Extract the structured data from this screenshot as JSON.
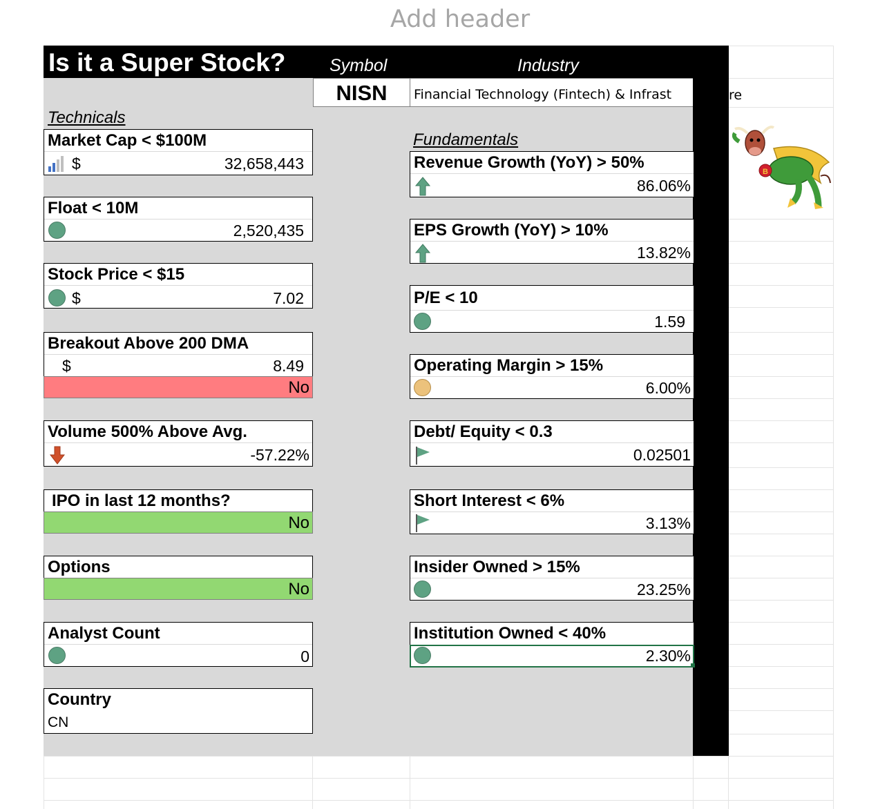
{
  "header": {
    "placeholder": "Add header"
  },
  "title": "Is it a Super Stock?",
  "columns": {
    "symbol": "Symbol",
    "industry": "Industry"
  },
  "symbol": "NISN",
  "industry": "Financial Technology (Fintech) & Infrastructure",
  "industry_visible": "Financial Technology (Fintech) & Infrast",
  "industry_overflow": "re",
  "sections": {
    "technicals": "Technicals",
    "fundamentals": "Fundamentals"
  },
  "technicals": {
    "market_cap": {
      "label": "Market Cap < $100M",
      "currency": "$",
      "value": "32,658,443",
      "icon": "signal-bars-icon"
    },
    "float": {
      "label": "Float < 10M",
      "value": "2,520,435",
      "icon": "green-circle-icon"
    },
    "stock_price": {
      "label": "Stock Price < $15",
      "currency": "$",
      "value": "7.02",
      "icon": "green-circle-icon"
    },
    "breakout": {
      "label": "Breakout Above 200 DMA",
      "currency": "$",
      "value": "8.49",
      "result": "No",
      "result_color": "#ff7c80"
    },
    "volume": {
      "label": "Volume 500% Above Avg.",
      "value": "-57.22%",
      "icon": "red-down-arrow-icon"
    },
    "ipo": {
      "label": "IPO in last 12 months?",
      "result": "No",
      "result_color": "#92d872"
    },
    "options": {
      "label": "Options",
      "result": "No",
      "result_color": "#92d872"
    },
    "analyst_count": {
      "label": "Analyst Count",
      "value": "0",
      "icon": "green-circle-icon"
    },
    "country": {
      "label": "Country",
      "value": "CN"
    }
  },
  "fundamentals": {
    "revenue_growth": {
      "label": "Revenue Growth (YoY) > 50%",
      "value": "86.06%",
      "icon": "green-up-arrow-icon"
    },
    "eps_growth": {
      "label": "EPS Growth (YoY) > 10%",
      "value": "13.82%",
      "icon": "green-up-arrow-icon"
    },
    "pe": {
      "label": "P/E < 10",
      "value": "1.59",
      "icon": "green-circle-icon"
    },
    "operating_margin": {
      "label": "Operating Margin > 15%",
      "value": "6.00%",
      "icon": "amber-circle-icon"
    },
    "debt_equity": {
      "label": "Debt/ Equity < 0.3",
      "value": "0.02501",
      "icon": "green-flag-icon"
    },
    "short_interest": {
      "label": "Short Interest < 6%",
      "value": "3.13%",
      "icon": "green-flag-icon"
    },
    "insider_owned": {
      "label": "Insider Owned > 15%",
      "value": "23.25%",
      "icon": "green-circle-icon"
    },
    "institution_owned": {
      "label": "Institution Owned < 40%",
      "value": "2.30%",
      "icon": "green-circle-icon"
    }
  },
  "colors": {
    "sheet_bg": "#d9d9d9",
    "green_circle": "#5ea283",
    "amber_circle": "#ecc27c",
    "up_arrow": "#5ea283",
    "down_arrow": "#d0512b"
  },
  "mascot": {
    "icon": "flying-superhero-bull-mascot"
  }
}
